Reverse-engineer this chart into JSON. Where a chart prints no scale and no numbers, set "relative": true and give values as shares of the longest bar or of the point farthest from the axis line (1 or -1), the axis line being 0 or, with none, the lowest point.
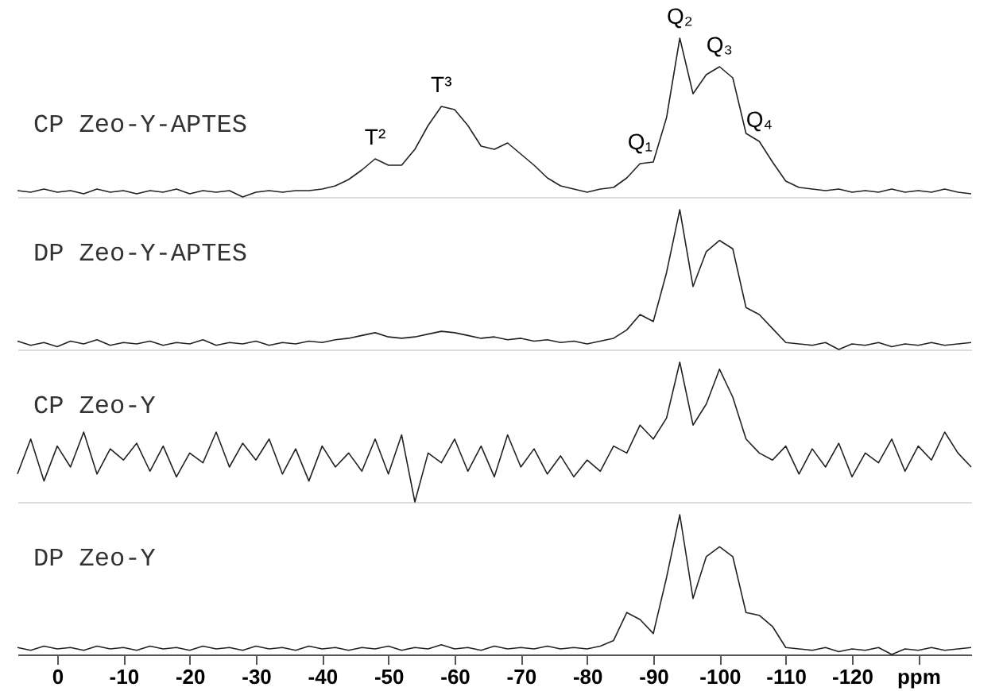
{
  "chart_data": [
    {
      "type": "line",
      "relative": true,
      "xlim": [
        6,
        -138
      ],
      "tick_labels": false,
      "line_style": "solid",
      "x": [
        6,
        4,
        2,
        0,
        -2,
        -4,
        -6,
        -8,
        -10,
        -12,
        -14,
        -16,
        -18,
        -20,
        -22,
        -24,
        -26,
        -28,
        -30,
        -32,
        -34,
        -36,
        -38,
        -40,
        -42,
        -44,
        -46,
        -48,
        -50,
        -52,
        -54,
        -56,
        -58,
        -60,
        -62,
        -64,
        -66,
        -68,
        -70,
        -72,
        -74,
        -76,
        -78,
        -80,
        -82,
        -84,
        -86,
        -88,
        -90,
        -92,
        -94,
        -96,
        -98,
        -100,
        -102,
        -104,
        -106,
        -108,
        -110,
        -112,
        -114,
        -116,
        -118,
        -120,
        -122,
        -124,
        -126,
        -128,
        -130,
        -132,
        -134,
        -136,
        -138
      ],
      "series": [
        {
          "name": "CP Zeo-Y-APTES",
          "color": "#222222",
          "values": [
            0.04,
            0.03,
            0.05,
            0.03,
            0.04,
            0.02,
            0.05,
            0.03,
            0.04,
            0.02,
            0.04,
            0.03,
            0.05,
            0.02,
            0.04,
            0.03,
            0.04,
            0,
            0.03,
            0.04,
            0.03,
            0.04,
            0.04,
            0.05,
            0.07,
            0.11,
            0.17,
            0.24,
            0.2,
            0.2,
            0.3,
            0.45,
            0.57,
            0.55,
            0.45,
            0.32,
            0.3,
            0.34,
            0.27,
            0.2,
            0.12,
            0.07,
            0.05,
            0.03,
            0.05,
            0.06,
            0.12,
            0.21,
            0.22,
            0.5,
            1,
            0.65,
            0.77,
            0.82,
            0.75,
            0.4,
            0.35,
            0.22,
            0.1,
            0.06,
            0.05,
            0.04,
            0.05,
            0.03,
            0.04,
            0.03,
            0.05,
            0.03,
            0.04,
            0.03,
            0.05,
            0.03,
            0.02
          ]
        }
      ],
      "annotations": [
        {
          "text": "T²",
          "x": -48,
          "y": 0.24
        },
        {
          "text": "T³",
          "x": -58,
          "y": 0.57
        },
        {
          "text": "Q₁",
          "x": -88,
          "y": 0.21
        },
        {
          "text": "Q₂",
          "x": -94,
          "y": 1
        },
        {
          "text": "Q₃",
          "x": -100,
          "y": 0.82
        },
        {
          "text": "Q₄",
          "x": -106,
          "y": 0.35
        }
      ]
    },
    {
      "type": "line",
      "relative": true,
      "xlim": [
        6,
        -138
      ],
      "tick_labels": false,
      "line_style": "solid",
      "x": [
        6,
        4,
        2,
        0,
        -2,
        -4,
        -6,
        -8,
        -10,
        -12,
        -14,
        -16,
        -18,
        -20,
        -22,
        -24,
        -26,
        -28,
        -30,
        -32,
        -34,
        -36,
        -38,
        -40,
        -42,
        -44,
        -46,
        -48,
        -50,
        -52,
        -54,
        -56,
        -58,
        -60,
        -62,
        -64,
        -66,
        -68,
        -70,
        -72,
        -74,
        -76,
        -78,
        -80,
        -82,
        -84,
        -86,
        -88,
        -90,
        -92,
        -94,
        -96,
        -98,
        -100,
        -102,
        -104,
        -106,
        -108,
        -110,
        -112,
        -114,
        -116,
        -118,
        -120,
        -122,
        -124,
        -126,
        -128,
        -130,
        -132,
        -134,
        -136,
        -138
      ],
      "series": [
        {
          "name": "DP Zeo-Y-APTES",
          "color": "#222222",
          "values": [
            0.06,
            0.03,
            0.05,
            0.02,
            0.06,
            0.04,
            0.07,
            0.03,
            0.05,
            0.04,
            0.06,
            0.03,
            0.05,
            0.04,
            0.07,
            0.03,
            0.05,
            0.04,
            0.06,
            0.03,
            0.05,
            0.04,
            0.06,
            0.05,
            0.07,
            0.08,
            0.1,
            0.12,
            0.09,
            0.08,
            0.09,
            0.11,
            0.13,
            0.12,
            0.1,
            0.08,
            0.09,
            0.07,
            0.08,
            0.06,
            0.07,
            0.05,
            0.06,
            0.04,
            0.06,
            0.08,
            0.14,
            0.25,
            0.2,
            0.55,
            1,
            0.45,
            0.7,
            0.78,
            0.72,
            0.3,
            0.25,
            0.15,
            0.05,
            0.04,
            0.03,
            0.05,
            0,
            0.04,
            0.03,
            0.05,
            0.02,
            0.04,
            0.03,
            0.05,
            0.03,
            0.04,
            0.05
          ]
        }
      ]
    },
    {
      "type": "line",
      "relative": true,
      "xlim": [
        6,
        -138
      ],
      "tick_labels": false,
      "line_style": "solid",
      "x": [
        6,
        4,
        2,
        0,
        -2,
        -4,
        -6,
        -8,
        -10,
        -12,
        -14,
        -16,
        -18,
        -20,
        -22,
        -24,
        -26,
        -28,
        -30,
        -32,
        -34,
        -36,
        -38,
        -40,
        -42,
        -44,
        -46,
        -48,
        -50,
        -52,
        -54,
        -56,
        -58,
        -60,
        -62,
        -64,
        -66,
        -68,
        -70,
        -72,
        -74,
        -76,
        -78,
        -80,
        -82,
        -84,
        -86,
        -88,
        -90,
        -92,
        -94,
        -96,
        -98,
        -100,
        -102,
        -104,
        -106,
        -108,
        -110,
        -112,
        -114,
        -116,
        -118,
        -120,
        -122,
        -124,
        -126,
        -128,
        -130,
        -132,
        -134,
        -136,
        -138
      ],
      "series": [
        {
          "name": "CP Zeo-Y",
          "color": "#222222",
          "values": [
            0.2,
            0.45,
            0.15,
            0.4,
            0.25,
            0.5,
            0.2,
            0.38,
            0.3,
            0.42,
            0.22,
            0.4,
            0.18,
            0.35,
            0.28,
            0.5,
            0.25,
            0.42,
            0.3,
            0.45,
            0.2,
            0.38,
            0.15,
            0.4,
            0.25,
            0.35,
            0.22,
            0.45,
            0.2,
            0.48,
            0,
            0.35,
            0.28,
            0.45,
            0.22,
            0.4,
            0.18,
            0.48,
            0.25,
            0.38,
            0.2,
            0.33,
            0.18,
            0.3,
            0.22,
            0.4,
            0.35,
            0.55,
            0.45,
            0.6,
            1,
            0.55,
            0.7,
            0.95,
            0.75,
            0.45,
            0.35,
            0.3,
            0.4,
            0.2,
            0.38,
            0.25,
            0.42,
            0.18,
            0.35,
            0.28,
            0.45,
            0.22,
            0.4,
            0.3,
            0.5,
            0.35,
            0.25
          ]
        }
      ]
    },
    {
      "type": "line",
      "relative": true,
      "xlim": [
        6,
        -138
      ],
      "tick_labels": "x",
      "line_style": "solid",
      "xticks": [
        0,
        -10,
        -20,
        -30,
        -40,
        -50,
        -60,
        -70,
        -80,
        -90,
        -100,
        -110,
        -120,
        {
          "value": -130,
          "label": "ppm"
        }
      ],
      "x": [
        6,
        4,
        2,
        0,
        -2,
        -4,
        -6,
        -8,
        -10,
        -12,
        -14,
        -16,
        -18,
        -20,
        -22,
        -24,
        -26,
        -28,
        -30,
        -32,
        -34,
        -36,
        -38,
        -40,
        -42,
        -44,
        -46,
        -48,
        -50,
        -52,
        -54,
        -56,
        -58,
        -60,
        -62,
        -64,
        -66,
        -68,
        -70,
        -72,
        -74,
        -76,
        -78,
        -80,
        -82,
        -84,
        -86,
        -88,
        -90,
        -92,
        -94,
        -96,
        -98,
        -100,
        -102,
        -104,
        -106,
        -108,
        -110,
        -112,
        -114,
        -116,
        -118,
        -120,
        -122,
        -124,
        -126,
        -128,
        -130,
        -132,
        -134,
        -136,
        -138
      ],
      "series": [
        {
          "name": "DP Zeo-Y",
          "color": "#222222",
          "values": [
            0.05,
            0.03,
            0.06,
            0.04,
            0.05,
            0.03,
            0.06,
            0.04,
            0.05,
            0.03,
            0.06,
            0.04,
            0.05,
            0.03,
            0.06,
            0.04,
            0.05,
            0.03,
            0.06,
            0.04,
            0.05,
            0.03,
            0.06,
            0.04,
            0.05,
            0.03,
            0.05,
            0.04,
            0.06,
            0.03,
            0.05,
            0.04,
            0.07,
            0.04,
            0.05,
            0.03,
            0.06,
            0.04,
            0.05,
            0.04,
            0.06,
            0.04,
            0.05,
            0.04,
            0.06,
            0.1,
            0.3,
            0.25,
            0.15,
            0.55,
            1,
            0.4,
            0.7,
            0.77,
            0.7,
            0.3,
            0.28,
            0.2,
            0.05,
            0.04,
            0.03,
            0.05,
            0.02,
            0.04,
            0.03,
            0.05,
            0,
            0.04,
            0.03,
            0.05,
            0.03,
            0.04,
            0.05
          ]
        }
      ]
    }
  ]
}
